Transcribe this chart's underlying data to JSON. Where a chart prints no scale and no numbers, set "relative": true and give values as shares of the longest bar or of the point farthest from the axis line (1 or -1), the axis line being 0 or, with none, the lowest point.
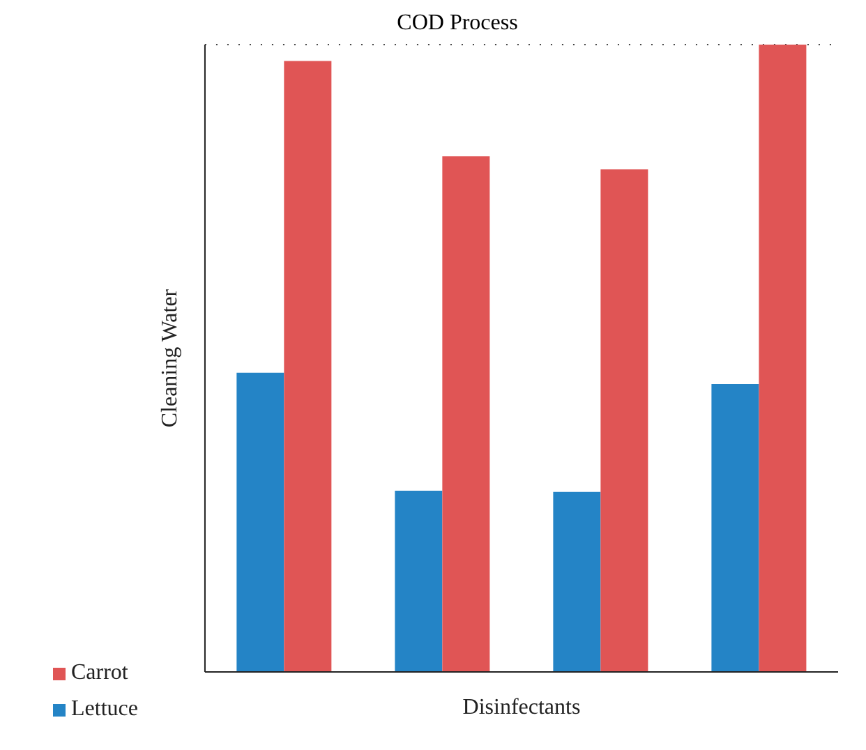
{
  "chart_data": {
    "type": "bar",
    "title": "COD Process",
    "xlabel": "Disinfectants",
    "ylabel": "Cleaning Water",
    "relative": true,
    "categories": [
      null,
      null,
      null,
      null
    ],
    "series": [
      {
        "name": "Lettuce",
        "color": "#2484c6",
        "values": [
          0.477,
          0.289,
          0.287,
          0.459
        ]
      },
      {
        "name": "Carrot",
        "color": "#e05555",
        "values": [
          0.974,
          0.822,
          0.801,
          1
        ]
      }
    ],
    "grid": "y",
    "legend": "bottom left"
  }
}
